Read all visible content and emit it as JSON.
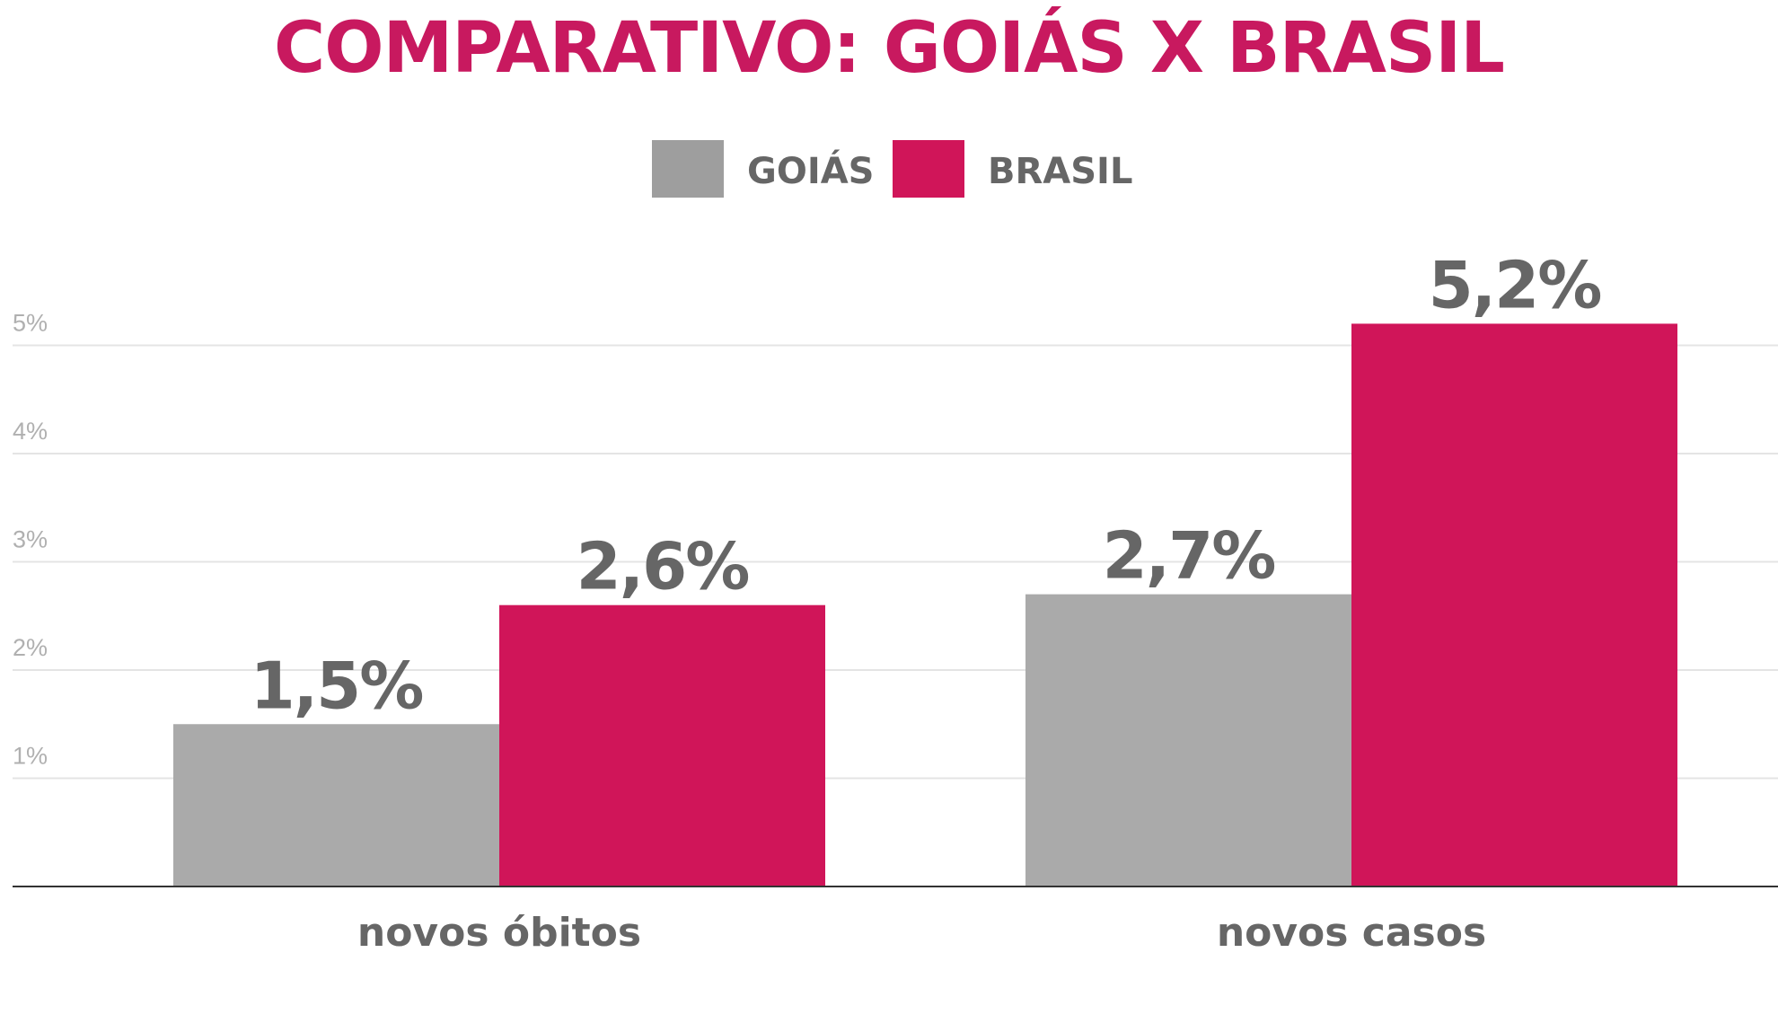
{
  "colors": {
    "title": "#c8195f",
    "brand": "#d01559",
    "gray_bar": "#aaaaaa",
    "legend_gray": "#9e9e9e",
    "text_dark": "#666666",
    "tick_text": "#b0b0b0",
    "grid": "#e4e4e4",
    "axis": "#333333"
  },
  "chart_data": {
    "type": "bar",
    "title": "COMPARATIVO: GOIÁS X BRASIL",
    "categories": [
      "novos óbitos",
      "novos casos"
    ],
    "series": [
      {
        "name": "GOIÁS",
        "values": [
          1.5,
          2.7
        ],
        "labels": [
          "1,5%",
          "2,7%"
        ]
      },
      {
        "name": "BRASIL",
        "values": [
          2.6,
          5.2
        ],
        "labels": [
          "2,6%",
          "5,2%"
        ]
      }
    ],
    "yticks": [
      1,
      2,
      3,
      4,
      5
    ],
    "ytick_labels": [
      "1%",
      "2%",
      "3%",
      "4%",
      "5%"
    ],
    "ylim": [
      0,
      5.2
    ],
    "grid": true,
    "legend": "top-center",
    "xlabel": "",
    "ylabel": ""
  }
}
